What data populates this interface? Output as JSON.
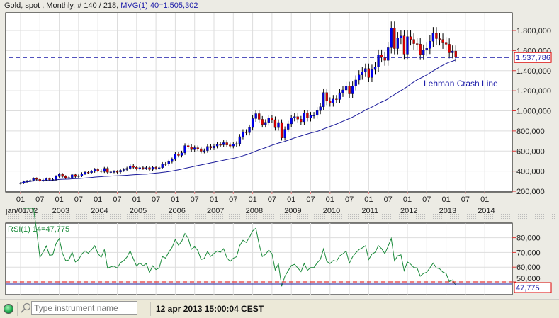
{
  "header": {
    "instrument": "Gold, spot , Monthly, # 140 / 218,",
    "indicator": " MVG(1) 40=1.505,302"
  },
  "main_chart": {
    "y_labels": [
      "200,000",
      "400,000",
      "600,000",
      "800,000",
      "1.000,000",
      "1.200,000",
      "1.400,000",
      "1.600,000",
      "1.800,000"
    ],
    "y_values": [
      200,
      400,
      600,
      800,
      1000,
      1200,
      1400,
      1600,
      1800
    ],
    "x_month_labels": [
      "01",
      "07",
      "01",
      "07",
      "01",
      "07",
      "01",
      "07",
      "01",
      "07",
      "01",
      "07",
      "01",
      "07",
      "01",
      "07",
      "01",
      "07",
      "01",
      "07",
      "01",
      "07",
      "01",
      "07",
      "01"
    ],
    "x_year_labels": [
      "jan/01/02",
      "2003",
      "2004",
      "2005",
      "2006",
      "2007",
      "2008",
      "2009",
      "2010",
      "2011",
      "2012",
      "2013",
      "2014"
    ],
    "current_price_label": "1.537,786",
    "current_price": 1537.786,
    "annotation": "Lehman Crash Line",
    "moving_average_period": 40,
    "start": "2002-01",
    "monthly_closes": [
      282,
      296,
      301,
      308,
      326,
      318,
      304,
      312,
      324,
      316,
      317,
      347,
      368,
      347,
      334,
      336,
      364,
      346,
      354,
      375,
      388,
      384,
      398,
      416,
      403,
      396,
      427,
      388,
      393,
      395,
      391,
      408,
      415,
      428,
      453,
      438,
      423,
      434,
      428,
      435,
      417,
      437,
      429,
      434,
      473,
      470,
      495,
      517,
      568,
      556,
      582,
      654,
      643,
      614,
      633,
      623,
      598,
      604,
      646,
      632,
      650,
      665,
      662,
      683,
      660,
      650,
      666,
      673,
      743,
      789,
      783,
      834,
      923,
      972,
      916,
      864,
      885,
      928,
      912,
      833,
      884,
      730,
      816,
      870,
      928,
      942,
      917,
      891,
      976,
      927,
      955,
      955,
      1002,
      1040,
      1181,
      1096,
      1080,
      1118,
      1113,
      1180,
      1208,
      1245,
      1169,
      1248,
      1307,
      1357,
      1385,
      1421,
      1332,
      1410,
      1439,
      1556,
      1536,
      1502,
      1628,
      1826,
      1620,
      1725,
      1746,
      1564,
      1739,
      1711,
      1669,
      1664,
      1561,
      1604,
      1622,
      1692,
      1772,
      1719,
      1711,
      1676,
      1663,
      1578,
      1595,
      1537.786
    ],
    "colors": {
      "up": "#0000ee",
      "down": "#dd0000",
      "ma": "#1a1a9a",
      "crash_line": "#1a1aa8"
    }
  },
  "rsi_chart": {
    "title": "RSI(1) 14=47,775",
    "period": 14,
    "y_labels": [
      "50,000",
      "60,000",
      "70,000",
      "80,000"
    ],
    "y_values": [
      50,
      60,
      70,
      80
    ],
    "current_value_label": "47,775",
    "colors": {
      "line": "#1a8a3a",
      "threshold": "#dd0000",
      "level": "#1a1a9a"
    }
  },
  "status_bar": {
    "search_placeholder": "Type instrument name",
    "datetime": "12 apr 2013 15:00:04 CEST"
  }
}
